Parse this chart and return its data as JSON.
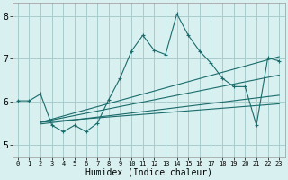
{
  "xlabel": "Humidex (Indice chaleur)",
  "bg_color": "#d8f0f0",
  "line_color": "#1a6b6b",
  "grid_color": "#a8cccc",
  "xlim": [
    -0.5,
    23.5
  ],
  "ylim": [
    4.7,
    8.3
  ],
  "yticks": [
    5,
    6,
    7,
    8
  ],
  "xticks": [
    0,
    1,
    2,
    3,
    4,
    5,
    6,
    7,
    8,
    9,
    10,
    11,
    12,
    13,
    14,
    15,
    16,
    17,
    18,
    19,
    20,
    21,
    22,
    23
  ],
  "series": [
    [
      0,
      6.02
    ],
    [
      1,
      6.02
    ],
    [
      2,
      6.18
    ],
    [
      3,
      5.45
    ],
    [
      4,
      5.3
    ],
    [
      5,
      5.45
    ],
    [
      6,
      5.3
    ],
    [
      7,
      5.5
    ],
    [
      8,
      6.05
    ],
    [
      9,
      6.55
    ],
    [
      10,
      7.18
    ],
    [
      11,
      7.55
    ],
    [
      12,
      7.2
    ],
    [
      13,
      7.1
    ],
    [
      14,
      8.05
    ],
    [
      15,
      7.55
    ],
    [
      16,
      7.18
    ],
    [
      17,
      6.9
    ],
    [
      18,
      6.55
    ],
    [
      19,
      6.35
    ],
    [
      20,
      6.35
    ],
    [
      21,
      5.45
    ],
    [
      22,
      7.02
    ],
    [
      23,
      6.95
    ]
  ],
  "reg_lines": [
    {
      "x0": 2,
      "y0": 5.52,
      "x1": 23,
      "y1": 7.05
    },
    {
      "x0": 2,
      "y0": 5.48,
      "x1": 23,
      "y1": 6.15
    },
    {
      "x0": 2,
      "y0": 5.52,
      "x1": 23,
      "y1": 6.62
    },
    {
      "x0": 2,
      "y0": 5.52,
      "x1": 23,
      "y1": 5.95
    }
  ]
}
